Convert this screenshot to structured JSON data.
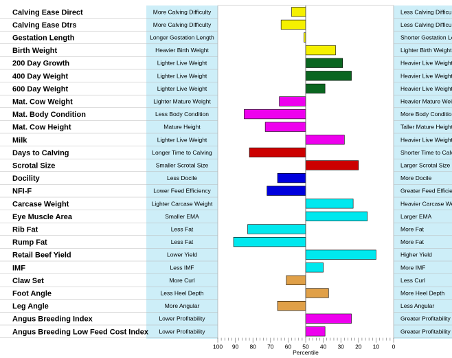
{
  "chart_data": {
    "type": "bar",
    "orientation": "horizontal",
    "xlabel": "Percentile",
    "xlim": [
      100,
      0
    ],
    "center_line": 50,
    "x_ticks": [
      100,
      90,
      80,
      70,
      60,
      50,
      40,
      30,
      20,
      10,
      0
    ],
    "grid": false,
    "colors": {
      "label_column": "#cdeef8",
      "calving": "#f5f000",
      "birth_weight": "#f5f000",
      "growth": "#0a6620",
      "maternal": "#ee00ee",
      "fertility": "#cc0000",
      "docility": "#0000dd",
      "carcase": "#00e8ee",
      "structure": "#e0a048",
      "index": "#ee00ee"
    },
    "traits": [
      {
        "name": "Calving Ease Direct",
        "left_label": "More Calving Difficulty",
        "right_label": "Less Calving Difficulty",
        "value": 58,
        "color": "#f5f000"
      },
      {
        "name": "Calving Ease Dtrs",
        "left_label": "More Calving Difficulty",
        "right_label": "Less Calving Difficulty",
        "value": 64,
        "color": "#f5f000"
      },
      {
        "name": "Gestation Length",
        "left_label": "Longer Gestation Length",
        "right_label": "Shorter Gestation Length",
        "value": 51,
        "color": "#f5f000"
      },
      {
        "name": "Birth Weight",
        "left_label": "Heavier Birth Weight",
        "right_label": "Lighter Birth Weight",
        "value": 33,
        "color": "#f5f000"
      },
      {
        "name": "200 Day Growth",
        "left_label": "Lighter Live Weight",
        "right_label": "Heavier Live Weight",
        "value": 29,
        "color": "#0a6620"
      },
      {
        "name": "400 Day Weight",
        "left_label": "Lighter Live Weight",
        "right_label": "Heavier Live Weight",
        "value": 24,
        "color": "#0a6620"
      },
      {
        "name": "600 Day Weight",
        "left_label": "Lighter Live Weight",
        "right_label": "Heavier Live Weight",
        "value": 39,
        "color": "#0a6620"
      },
      {
        "name": "Mat. Cow Weight",
        "left_label": "Lighter Mature Weight",
        "right_label": "Heavier Mature Weight",
        "value": 65,
        "color": "#ee00ee"
      },
      {
        "name": "Mat. Body Condition",
        "left_label": "Less Body Condition",
        "right_label": "More Body Condition",
        "value": 85,
        "color": "#ee00ee"
      },
      {
        "name": "Mat. Cow Height",
        "left_label": "Mature Height",
        "right_label": "Taller Mature Height",
        "value": 73,
        "color": "#ee00ee"
      },
      {
        "name": "Milk",
        "left_label": "Lighter Live Weight",
        "right_label": "Heavier Live Weight",
        "value": 28,
        "color": "#ee00ee"
      },
      {
        "name": "Days to Calving",
        "left_label": "Longer Time to Calving",
        "right_label": "Shorter Time to Calving",
        "value": 82,
        "color": "#cc0000"
      },
      {
        "name": "Scrotal Size",
        "left_label": "Smaller Scrotal Size",
        "right_label": "Larger Scrotal Size",
        "value": 20,
        "color": "#cc0000"
      },
      {
        "name": "Docility",
        "left_label": "Less Docile",
        "right_label": "More Docile",
        "value": 66,
        "color": "#0000dd"
      },
      {
        "name": "NFI-F",
        "left_label": "Lower Feed Efficiency",
        "right_label": "Greater Feed Efficiency",
        "value": 72,
        "color": "#0000dd"
      },
      {
        "name": "Carcase Weight",
        "left_label": "Lighter Carcase Weight",
        "right_label": "Heavier Carcase Weight",
        "value": 23,
        "color": "#00e8ee"
      },
      {
        "name": "Eye Muscle Area",
        "left_label": "Smaller EMA",
        "right_label": "Larger EMA",
        "value": 15,
        "color": "#00e8ee"
      },
      {
        "name": "Rib Fat",
        "left_label": "Less Fat",
        "right_label": "More Fat",
        "value": 83,
        "color": "#00e8ee"
      },
      {
        "name": "Rump Fat",
        "left_label": "Less Fat",
        "right_label": "More Fat",
        "value": 91,
        "color": "#00e8ee"
      },
      {
        "name": "Retail Beef Yield",
        "left_label": "Lower Yield",
        "right_label": "Higher Yield",
        "value": 10,
        "color": "#00e8ee"
      },
      {
        "name": "IMF",
        "left_label": "Less IMF",
        "right_label": "More IMF",
        "value": 40,
        "color": "#00e8ee"
      },
      {
        "name": "Claw Set",
        "left_label": "More Curl",
        "right_label": "Less Curl",
        "value": 61,
        "color": "#e0a048"
      },
      {
        "name": "Foot Angle",
        "left_label": "Less Heel Depth",
        "right_label": "More Heel Depth",
        "value": 37,
        "color": "#e0a048"
      },
      {
        "name": "Leg Angle",
        "left_label": "More Angular",
        "right_label": "Less Angular",
        "value": 66,
        "color": "#e0a048"
      },
      {
        "name": "Angus Breeding Index",
        "left_label": "Lower Profitability",
        "right_label": "Greater Profitability",
        "value": 24,
        "color": "#ee00ee"
      },
      {
        "name": "Angus Breeding Low Feed Cost Index",
        "left_label": "Lower Profitability",
        "right_label": "Greater Profitability",
        "value": 39,
        "color": "#ee00ee"
      }
    ]
  }
}
